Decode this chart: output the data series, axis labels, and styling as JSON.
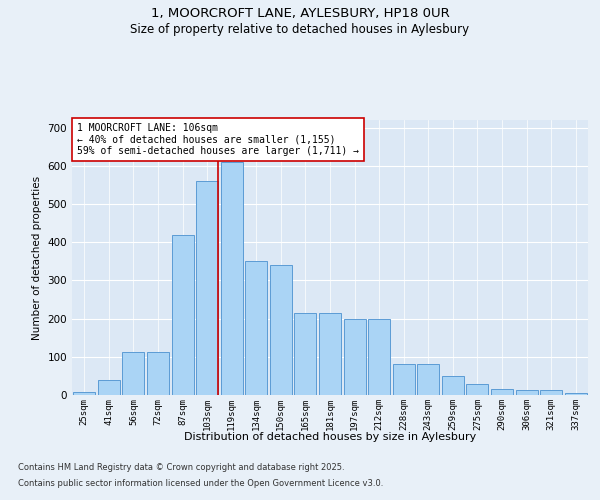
{
  "title_line1": "1, MOORCROFT LANE, AYLESBURY, HP18 0UR",
  "title_line2": "Size of property relative to detached houses in Aylesbury",
  "xlabel": "Distribution of detached houses by size in Aylesbury",
  "ylabel": "Number of detached properties",
  "categories": [
    "25sqm",
    "41sqm",
    "56sqm",
    "72sqm",
    "87sqm",
    "103sqm",
    "119sqm",
    "134sqm",
    "150sqm",
    "165sqm",
    "181sqm",
    "197sqm",
    "212sqm",
    "228sqm",
    "243sqm",
    "259sqm",
    "275sqm",
    "290sqm",
    "306sqm",
    "321sqm",
    "337sqm"
  ],
  "values": [
    8,
    40,
    112,
    113,
    420,
    560,
    610,
    350,
    340,
    215,
    215,
    200,
    200,
    80,
    80,
    50,
    30,
    15,
    12,
    12,
    5
  ],
  "bar_color": "#aad4f5",
  "bar_edge_color": "#5b9bd5",
  "vline_x_index": 5,
  "vline_color": "#cc0000",
  "annotation_text": "1 MOORCROFT LANE: 106sqm\n← 40% of detached houses are smaller (1,155)\n59% of semi-detached houses are larger (1,711) →",
  "annotation_box_color": "#ffffff",
  "annotation_box_edge_color": "#cc0000",
  "ylim": [
    0,
    720
  ],
  "yticks": [
    0,
    100,
    200,
    300,
    400,
    500,
    600,
    700
  ],
  "bg_color": "#e8f0f8",
  "plot_bg_color": "#dce8f5",
  "footer_line1": "Contains HM Land Registry data © Crown copyright and database right 2025.",
  "footer_line2": "Contains public sector information licensed under the Open Government Licence v3.0."
}
